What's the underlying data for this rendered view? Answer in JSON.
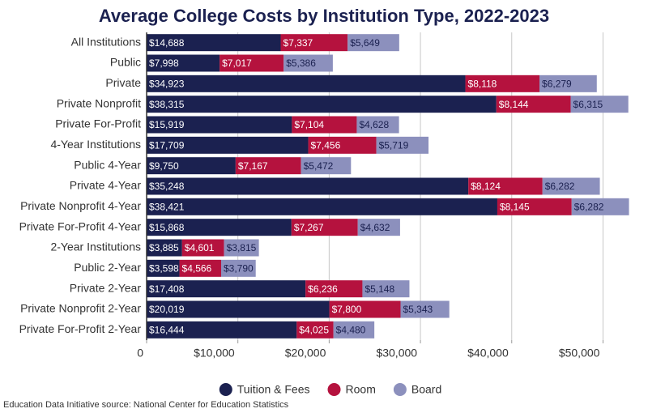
{
  "chart_data": {
    "type": "stacked-bar-horizontal",
    "title": "Average College Costs by Institution Type, 2022-2023",
    "source": "Education Data Initiative source: National Center for Education Statistics",
    "categories": [
      "All Institutions",
      "Public",
      "Private",
      "Private Nonprofit",
      "Private For-Profit",
      "4-Year Institutions",
      "Public 4-Year",
      "Private 4-Year",
      "Private Nonprofit 4-Year",
      "Private For-Profit 4-Year",
      "2-Year Institutions",
      "Public 2-Year",
      "Private 2-Year",
      "Private Nonprofit 2-Year",
      "Private For-Profit 2-Year"
    ],
    "series": [
      {
        "name": "Tuition & Fees",
        "color": "#1b2150",
        "values": [
          14688,
          7998,
          34923,
          38315,
          15919,
          17709,
          9750,
          35248,
          38421,
          15868,
          3885,
          3598,
          17408,
          20019,
          16444
        ],
        "value_labels": [
          "$14,688",
          "$7,998",
          "$34,923",
          "$38,315",
          "$15,919",
          "$17,709",
          "$9,750",
          "$35,248",
          "$38,421",
          "$15,868",
          "$3,885",
          "$3,598",
          "$17,408",
          "$20,019",
          "$16,444"
        ]
      },
      {
        "name": "Room",
        "color": "#b5123e",
        "values": [
          7337,
          7017,
          8118,
          8144,
          7104,
          7456,
          7167,
          8124,
          8145,
          7267,
          4601,
          4566,
          6236,
          7800,
          4025
        ],
        "value_labels": [
          "$7,337",
          "$7,017",
          "$8,118",
          "$8,144",
          "$7,104",
          "$7,456",
          "$7,167",
          "$8,124",
          "$8,145",
          "$7,267",
          "$4,601",
          "$4,566",
          "$6,236",
          "$7,800",
          "$4,025"
        ]
      },
      {
        "name": "Board",
        "color": "#8c90bd",
        "values": [
          5649,
          5386,
          6279,
          6315,
          4628,
          5719,
          5472,
          6282,
          6282,
          4632,
          3815,
          3790,
          5148,
          5343,
          4480
        ],
        "value_labels": [
          "$5,649",
          "$5,386",
          "$6,279",
          "$6,315",
          "$4,628",
          "$5,719",
          "$5,472",
          "$6,282",
          "$6,282",
          "$4,632",
          "$3,815",
          "$3,790",
          "$5,148",
          "$5,343",
          "$4,480"
        ]
      }
    ],
    "xlim": [
      0,
      52800
    ],
    "xticks": [
      0,
      {
        "value": 10000,
        "label": "$10,000"
      },
      {
        "value": 20000,
        "label": "$20,000"
      },
      {
        "value": 30000,
        "label": "$30,000"
      },
      {
        "value": 40000,
        "label": "$40,000"
      },
      {
        "value": 50000,
        "label": "$50,000"
      }
    ],
    "grid": true
  }
}
